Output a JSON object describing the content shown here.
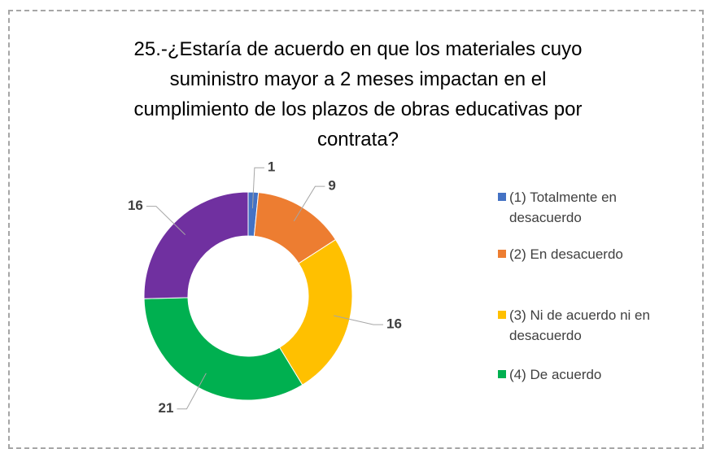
{
  "chart_data": {
    "type": "donut",
    "title": "25.-¿Estaría de acuerdo en que los materiales cuyo suministro mayor a 2 meses impactan en el cumplimiento de los plazos de obras educativas por contrata?",
    "categories": [
      "(1) Totalmente en desacuerdo",
      "(2) En desacuerdo",
      "(3) Ni de acuerdo ni en desacuerdo",
      "(4) De acuerdo",
      null
    ],
    "values": [
      1,
      9,
      16,
      21,
      16
    ],
    "colors": [
      "#4472c4",
      "#ed7d31",
      "#ffc000",
      "#00b050",
      "#7030a0"
    ],
    "legend": "right"
  }
}
